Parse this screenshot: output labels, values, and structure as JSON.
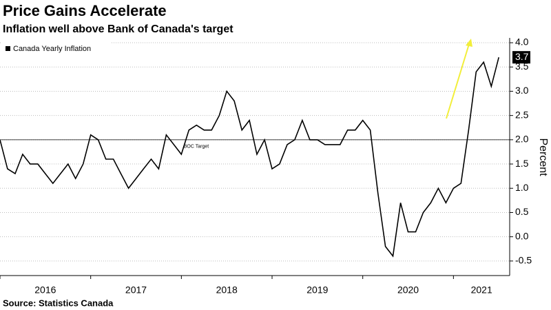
{
  "chart_data": {
    "type": "line",
    "title": "Price Gains Accelerate",
    "subtitle": "Inflation well above Bank of Canada's target",
    "source": "Source: Statistics Canada",
    "y_label": "Percent",
    "x": [
      2016,
      2016.083,
      2016.167,
      2016.25,
      2016.333,
      2016.417,
      2016.5,
      2016.583,
      2016.667,
      2016.75,
      2016.833,
      2016.917,
      2017,
      2017.083,
      2017.167,
      2017.25,
      2017.333,
      2017.417,
      2017.5,
      2017.583,
      2017.667,
      2017.75,
      2017.833,
      2017.917,
      2018,
      2018.083,
      2018.167,
      2018.25,
      2018.333,
      2018.417,
      2018.5,
      2018.583,
      2018.667,
      2018.75,
      2018.833,
      2018.917,
      2019,
      2019.083,
      2019.167,
      2019.25,
      2019.333,
      2019.417,
      2019.5,
      2019.583,
      2019.667,
      2019.75,
      2019.833,
      2019.917,
      2020,
      2020.083,
      2020.167,
      2020.25,
      2020.333,
      2020.417,
      2020.5,
      2020.583,
      2020.667,
      2020.75,
      2020.833,
      2020.917,
      2021,
      2021.083,
      2021.167,
      2021.25,
      2021.333,
      2021.417,
      2021.5
    ],
    "series": [
      {
        "name": "Canada Yearly Inflation",
        "color": "#000000",
        "values": [
          2.0,
          1.4,
          1.3,
          1.7,
          1.5,
          1.5,
          1.3,
          1.1,
          1.3,
          1.5,
          1.2,
          1.5,
          2.1,
          2.0,
          1.6,
          1.6,
          1.3,
          1.0,
          1.2,
          1.4,
          1.6,
          1.4,
          2.1,
          1.9,
          1.7,
          2.2,
          2.3,
          2.2,
          2.2,
          2.5,
          3.0,
          2.8,
          2.2,
          2.4,
          1.7,
          2.0,
          1.4,
          1.5,
          1.9,
          2.0,
          2.4,
          2.0,
          2.0,
          1.9,
          1.9,
          1.9,
          2.2,
          2.2,
          2.4,
          2.2,
          0.9,
          -0.2,
          -0.4,
          0.7,
          0.1,
          0.1,
          0.5,
          0.7,
          1.0,
          0.7,
          1.0,
          1.1,
          2.2,
          3.4,
          3.6,
          3.1,
          3.7
        ]
      }
    ],
    "reference_line": {
      "label": "BOC Target",
      "value": 2.0
    },
    "xlim": [
      2016,
      2021.62
    ],
    "xticks": [
      2016,
      2017,
      2018,
      2019,
      2020,
      2021
    ],
    "ylim": [
      -0.8,
      4.1
    ],
    "yticks": [
      -0.5,
      {
        "value": 0.0,
        "label": "0.0"
      },
      0.5,
      {
        "value": 1.0,
        "label": "1.0"
      },
      1.5,
      {
        "value": 2.0,
        "label": "2.0"
      },
      2.5,
      {
        "value": 3.0,
        "label": "3.0"
      },
      3.5,
      {
        "value": 4.0,
        "label": "4.0"
      }
    ],
    "grid": true
  }
}
